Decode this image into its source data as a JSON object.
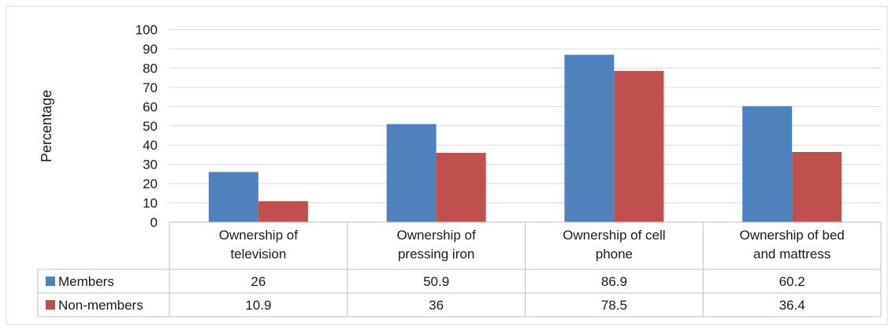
{
  "chart_data": {
    "type": "bar",
    "title": "",
    "xlabel": "",
    "ylabel": "Percentage",
    "ylim": [
      0,
      100
    ],
    "yticks": [
      0,
      10,
      20,
      30,
      40,
      50,
      60,
      70,
      80,
      90,
      100
    ],
    "grid": true,
    "legend_placement": "data-table",
    "categories": [
      [
        "Ownership of",
        "television"
      ],
      [
        "Ownership of",
        "pressing iron"
      ],
      [
        "Ownership of cell",
        "phone"
      ],
      [
        "Ownership of bed",
        "and mattress"
      ]
    ],
    "series": [
      {
        "name": "Members",
        "color": "#4f81bd",
        "values": [
          26,
          50.9,
          86.9,
          60.2
        ],
        "labels": [
          "26",
          "50.9",
          "86.9",
          "60.2"
        ]
      },
      {
        "name": "Non-members",
        "color": "#c0504d",
        "values": [
          10.9,
          36,
          78.5,
          36.4
        ],
        "labels": [
          "10.9",
          "36",
          "78.5",
          "36.4"
        ]
      }
    ]
  }
}
